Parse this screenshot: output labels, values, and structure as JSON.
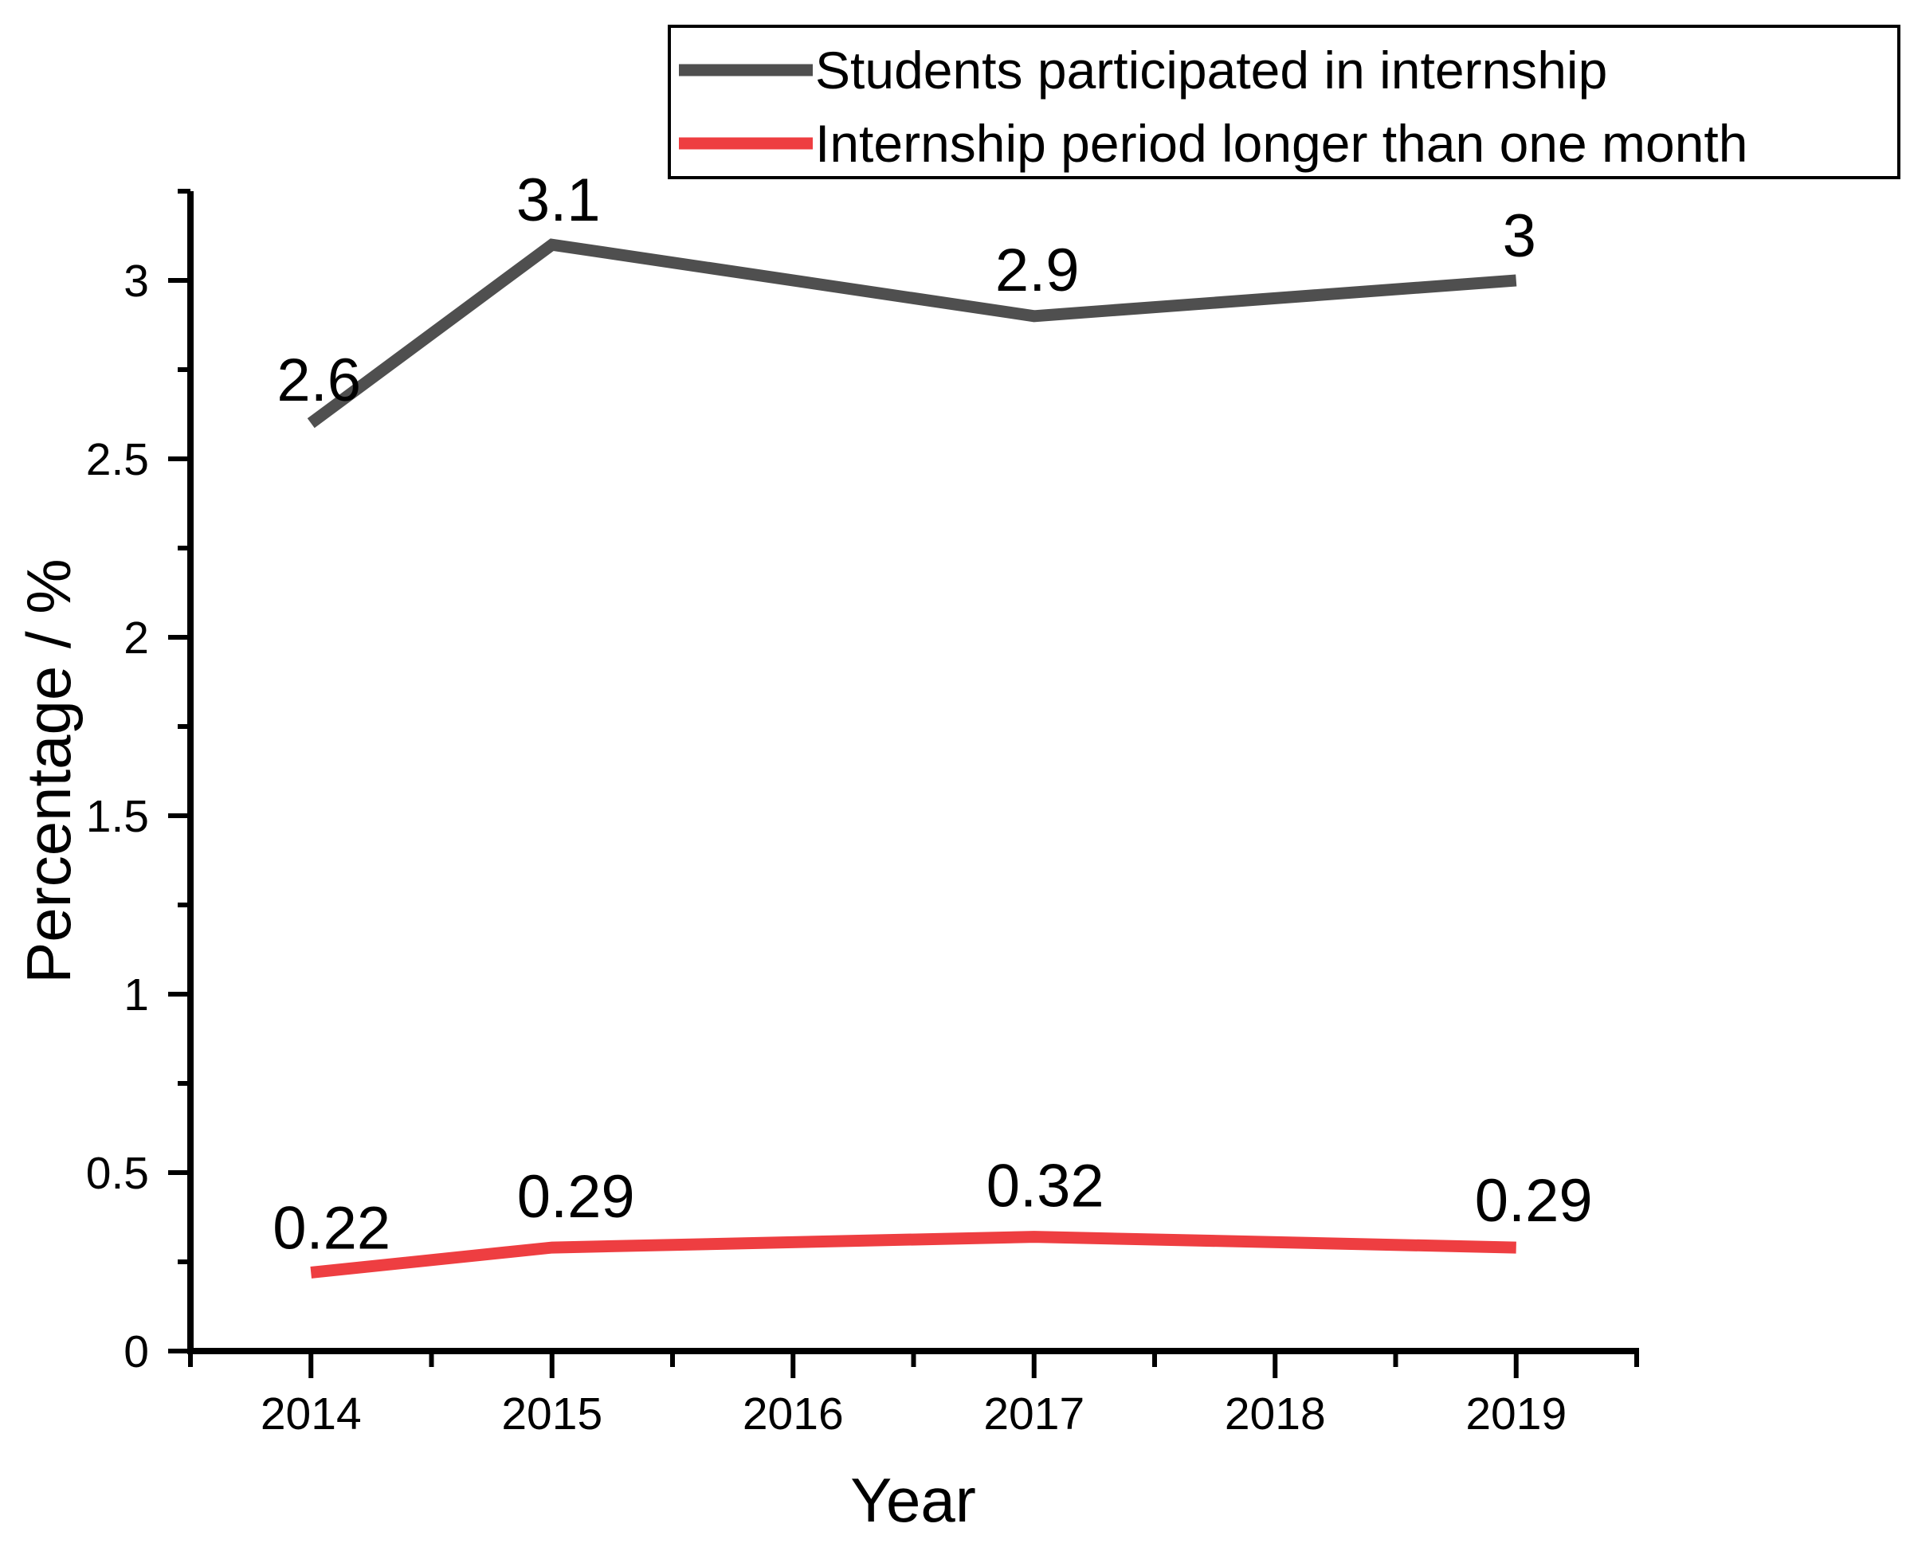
{
  "chart_data": {
    "type": "line",
    "title": "",
    "xlabel": "Year",
    "ylabel": "Percentage / %",
    "x_range": [
      2013.5,
      2019.5
    ],
    "y_range": [
      0,
      3.25
    ],
    "x_major_ticks": [
      2014,
      2015,
      2016,
      2017,
      2018,
      2019
    ],
    "x_tick_labels": [
      "2014",
      "2015",
      "2016",
      "2017",
      "2018",
      "2019"
    ],
    "x_minor_ticks": [
      2013.5,
      2014.5,
      2015.5,
      2016.5,
      2017.5,
      2018.5,
      2019.5
    ],
    "y_major_ticks": [
      0,
      0.5,
      1,
      1.5,
      2,
      2.5,
      3
    ],
    "y_tick_labels": [
      "0",
      "0.5",
      "1",
      "1.5",
      "2",
      "2.5",
      "3"
    ],
    "y_minor_ticks": [
      0.25,
      0.75,
      1.25,
      1.75,
      2.25,
      2.75,
      3.25
    ],
    "grid": false,
    "legend_position": "top-right",
    "axis_color": "#000000",
    "background_color": "#ffffff",
    "series": [
      {
        "name": "Students participated in internship",
        "color": "#4F4F4F",
        "x": [
          2014,
          2015,
          2017,
          2019
        ],
        "values": [
          2.6,
          3.1,
          2.9,
          3
        ],
        "point_labels": [
          "2.6",
          "3.1",
          "2.9",
          "3"
        ],
        "label_offsets": [
          [
            10,
            -28
          ],
          [
            8,
            -30
          ],
          [
            4,
            -32
          ],
          [
            4,
            -30
          ]
        ]
      },
      {
        "name": "Internship period longer than one month",
        "color": "#EE3E41",
        "x": [
          2014,
          2015,
          2017,
          2019
        ],
        "values": [
          0.22,
          0.29,
          0.32,
          0.29
        ],
        "point_labels": [
          "0.22",
          "0.29",
          "0.32",
          "0.29"
        ],
        "label_offsets": [
          [
            26,
            -30
          ],
          [
            30,
            -38
          ],
          [
            14,
            -38
          ],
          [
            22,
            -33
          ]
        ]
      }
    ]
  }
}
